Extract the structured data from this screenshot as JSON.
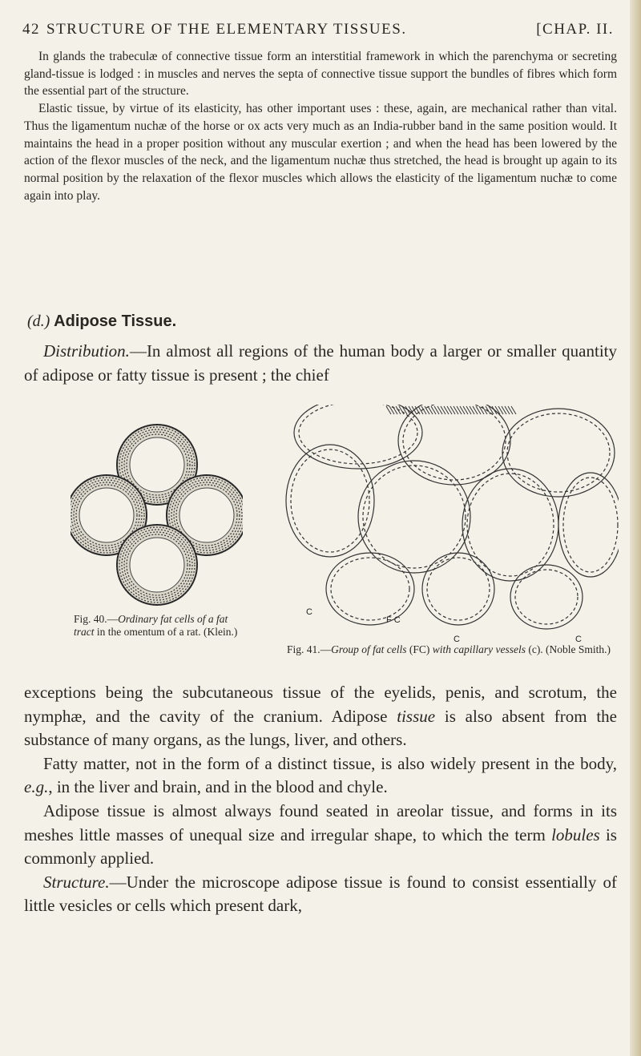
{
  "header": {
    "page_number": "42",
    "running_title": "STRUCTURE OF THE ELEMENTARY TISSUES.",
    "chapter": "[CHAP. II."
  },
  "paragraphs_top": [
    [
      "In glands the trabeculæ of connective tissue form an interstitial framework in which the parenchyma or secreting gland-tissue is lodged : in muscles and nerves the septa of connective tissue support the bundles of fibres which form the essential part of the structure."
    ],
    [
      "Elastic tissue, by virtue of its elasticity, has other important uses : these, again, are mechanical rather than vital. Thus the ligamentum nuchæ of the horse or ox acts very much as an India-rubber band in the same position would. It maintains the head in a proper position without any muscular exertion ; and when the head has been lowered by the action of the flexor muscles of the neck, and the ligamentum nuchæ thus stretched, the head is brought up again to its normal position by the relaxation of the flexor muscles which allows the elasticity of the ligamentum nuchæ to come again into play."
    ]
  ],
  "section": {
    "label": "(d.)",
    "title": "Adipose Tissue."
  },
  "intro": [
    {
      "text": "Distribution.",
      "italic": true
    },
    "—In almost all regions of the human body a larger or smaller quantity of adipose or fatty tissue is present ; the chief"
  ],
  "figures": [
    {
      "caption": [
        "Fig. 40.—",
        {
          "text": "Ordinary fat cells of a fat tract",
          "italic": true
        },
        " in the omentum of a rat. (Klein.)"
      ]
    },
    {
      "caption": [
        "Fig. 41.—",
        {
          "text": "Group of fat cells",
          "italic": true
        },
        " (FC) ",
        {
          "text": "with capillary vessels",
          "italic": true
        },
        " (c). (Noble Smith.)"
      ],
      "labels": [
        "C",
        "F C",
        "C",
        "C"
      ]
    }
  ],
  "paragraphs_bottom": [
    [
      "exceptions being the subcutaneous tissue of the eyelids, penis, and scrotum, the nymphæ, and the cavity of the cranium. Adipose ",
      {
        "text": "tissue",
        "italic": true
      },
      " is also absent from the substance of many organs, as the lungs, liver, and others."
    ],
    [
      "Fatty matter, not in the form of a distinct tissue, is also widely present in the body, ",
      {
        "text": "e.g.",
        "italic": true
      },
      ", in the liver and brain, and in the blood and chyle."
    ],
    [
      "Adipose tissue is almost always found seated in areolar tissue, and forms in its meshes little masses of unequal size and irregular shape, to which the term ",
      {
        "text": "lobules",
        "italic": true
      },
      " is commonly applied."
    ],
    [
      {
        "text": "Structure.",
        "italic": true
      },
      "—Under the microscope adipose tissue is found to consist essentially of little vesicles or cells which present dark,"
    ]
  ]
}
